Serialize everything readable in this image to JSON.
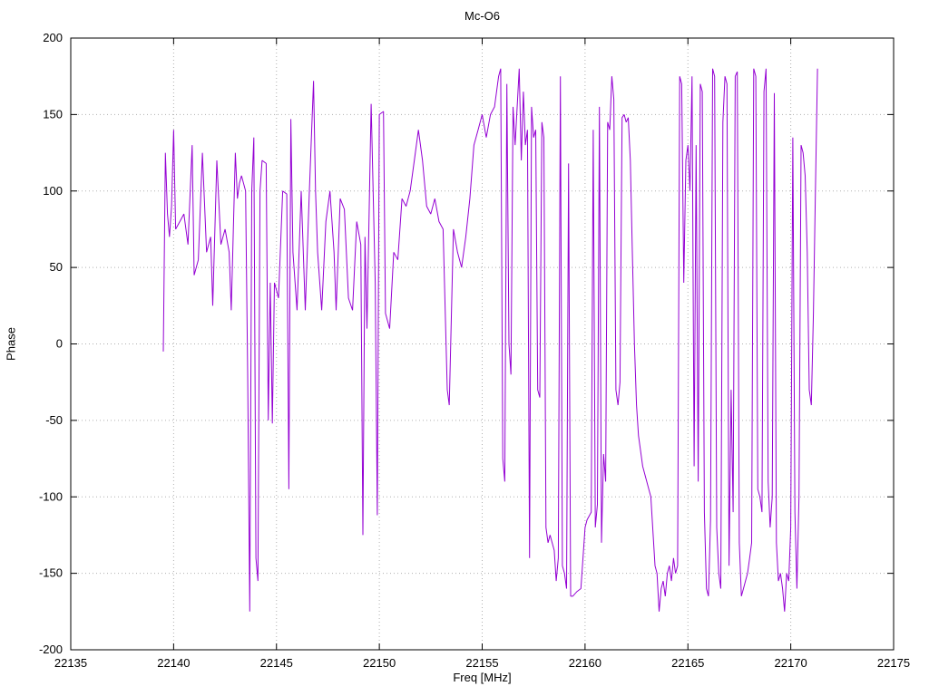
{
  "page": {
    "background": "#ffffff"
  },
  "chart_data": {
    "type": "line",
    "title": "Mc-O6",
    "xlabel": "Freq [MHz]",
    "ylabel": "Phase",
    "xlim": [
      22135,
      22175
    ],
    "ylim": [
      -200,
      200
    ],
    "x_ticks": [
      22135,
      22140,
      22145,
      22150,
      22155,
      22160,
      22165,
      22170,
      22175
    ],
    "y_ticks": [
      -200,
      -150,
      -100,
      -50,
      0,
      50,
      100,
      150,
      200
    ],
    "grid": true,
    "grid_style": "dotted",
    "legend": "none",
    "line_color": "#9400d3",
    "border_color": "#000000",
    "grid_color": "#b0b0b0",
    "series": [
      {
        "name": "phase",
        "points": [
          [
            22139.5,
            -5
          ],
          [
            22139.6,
            125
          ],
          [
            22139.7,
            85
          ],
          [
            22139.8,
            70
          ],
          [
            22139.9,
            90
          ],
          [
            22140.0,
            140
          ],
          [
            22140.1,
            75
          ],
          [
            22140.3,
            80
          ],
          [
            22140.5,
            85
          ],
          [
            22140.7,
            65
          ],
          [
            22140.9,
            130
          ],
          [
            22141.0,
            45
          ],
          [
            22141.2,
            55
          ],
          [
            22141.4,
            125
          ],
          [
            22141.6,
            60
          ],
          [
            22141.8,
            70
          ],
          [
            22141.9,
            25
          ],
          [
            22142.1,
            120
          ],
          [
            22142.3,
            65
          ],
          [
            22142.5,
            75
          ],
          [
            22142.7,
            60
          ],
          [
            22142.8,
            22
          ],
          [
            22143.0,
            125
          ],
          [
            22143.1,
            95
          ],
          [
            22143.2,
            105
          ],
          [
            22143.3,
            110
          ],
          [
            22143.5,
            100
          ],
          [
            22143.6,
            -20
          ],
          [
            22143.7,
            -175
          ],
          [
            22143.8,
            100
          ],
          [
            22143.9,
            135
          ],
          [
            22144.0,
            -140
          ],
          [
            22144.1,
            -155
          ],
          [
            22144.2,
            100
          ],
          [
            22144.3,
            120
          ],
          [
            22144.5,
            118
          ],
          [
            22144.6,
            -50
          ],
          [
            22144.7,
            40
          ],
          [
            22144.8,
            -52
          ],
          [
            22144.9,
            40
          ],
          [
            22145.0,
            35
          ],
          [
            22145.1,
            30
          ],
          [
            22145.3,
            100
          ],
          [
            22145.5,
            98
          ],
          [
            22145.6,
            -95
          ],
          [
            22145.7,
            147
          ],
          [
            22145.8,
            60
          ],
          [
            22146.0,
            22
          ],
          [
            22146.2,
            100
          ],
          [
            22146.4,
            22
          ],
          [
            22146.6,
            100
          ],
          [
            22146.8,
            172
          ],
          [
            22146.9,
            100
          ],
          [
            22147.0,
            60
          ],
          [
            22147.2,
            22
          ],
          [
            22147.4,
            80
          ],
          [
            22147.6,
            100
          ],
          [
            22147.8,
            60
          ],
          [
            22147.9,
            22
          ],
          [
            22148.1,
            95
          ],
          [
            22148.3,
            88
          ],
          [
            22148.5,
            30
          ],
          [
            22148.7,
            22
          ],
          [
            22148.9,
            80
          ],
          [
            22149.1,
            65
          ],
          [
            22149.2,
            -125
          ],
          [
            22149.3,
            70
          ],
          [
            22149.4,
            10
          ],
          [
            22149.6,
            157
          ],
          [
            22149.8,
            40
          ],
          [
            22149.9,
            -112
          ],
          [
            22150.0,
            150
          ],
          [
            22150.2,
            152
          ],
          [
            22150.3,
            20
          ],
          [
            22150.5,
            10
          ],
          [
            22150.7,
            60
          ],
          [
            22150.9,
            55
          ],
          [
            22151.1,
            95
          ],
          [
            22151.3,
            90
          ],
          [
            22151.5,
            100
          ],
          [
            22151.7,
            120
          ],
          [
            22151.9,
            140
          ],
          [
            22152.1,
            120
          ],
          [
            22152.3,
            90
          ],
          [
            22152.5,
            85
          ],
          [
            22152.7,
            95
          ],
          [
            22152.9,
            80
          ],
          [
            22153.1,
            75
          ],
          [
            22153.3,
            -30
          ],
          [
            22153.4,
            -40
          ],
          [
            22153.6,
            75
          ],
          [
            22153.8,
            60
          ],
          [
            22154.0,
            50
          ],
          [
            22154.2,
            70
          ],
          [
            22154.4,
            95
          ],
          [
            22154.6,
            130
          ],
          [
            22154.8,
            140
          ],
          [
            22155.0,
            150
          ],
          [
            22155.2,
            135
          ],
          [
            22155.4,
            150
          ],
          [
            22155.6,
            155
          ],
          [
            22155.8,
            175
          ],
          [
            22155.9,
            180
          ],
          [
            22156.0,
            -75
          ],
          [
            22156.1,
            -90
          ],
          [
            22156.2,
            170
          ],
          [
            22156.3,
            0
          ],
          [
            22156.4,
            -20
          ],
          [
            22156.5,
            155
          ],
          [
            22156.6,
            130
          ],
          [
            22156.8,
            180
          ],
          [
            22156.9,
            120
          ],
          [
            22157.0,
            165
          ],
          [
            22157.1,
            130
          ],
          [
            22157.2,
            140
          ],
          [
            22157.3,
            -140
          ],
          [
            22157.4,
            155
          ],
          [
            22157.5,
            135
          ],
          [
            22157.6,
            140
          ],
          [
            22157.7,
            -30
          ],
          [
            22157.8,
            -35
          ],
          [
            22157.9,
            145
          ],
          [
            22158.0,
            135
          ],
          [
            22158.1,
            -120
          ],
          [
            22158.2,
            -130
          ],
          [
            22158.3,
            -125
          ],
          [
            22158.4,
            -130
          ],
          [
            22158.5,
            -135
          ],
          [
            22158.6,
            -155
          ],
          [
            22158.7,
            -140
          ],
          [
            22158.8,
            175
          ],
          [
            22158.9,
            -145
          ],
          [
            22159.0,
            -150
          ],
          [
            22159.1,
            -160
          ],
          [
            22159.2,
            118
          ],
          [
            22159.3,
            -165
          ],
          [
            22159.4,
            -165
          ],
          [
            22159.6,
            -162
          ],
          [
            22159.8,
            -160
          ],
          [
            22160.0,
            -120
          ],
          [
            22160.1,
            -115
          ],
          [
            22160.3,
            -110
          ],
          [
            22160.4,
            140
          ],
          [
            22160.5,
            -120
          ],
          [
            22160.6,
            -105
          ],
          [
            22160.7,
            155
          ],
          [
            22160.8,
            -130
          ],
          [
            22160.9,
            -72
          ],
          [
            22161.0,
            -90
          ],
          [
            22161.1,
            145
          ],
          [
            22161.2,
            140
          ],
          [
            22161.3,
            175
          ],
          [
            22161.4,
            160
          ],
          [
            22161.5,
            -30
          ],
          [
            22161.6,
            -40
          ],
          [
            22161.7,
            -25
          ],
          [
            22161.8,
            148
          ],
          [
            22161.9,
            150
          ],
          [
            22162.0,
            145
          ],
          [
            22162.1,
            148
          ],
          [
            22162.2,
            120
          ],
          [
            22162.3,
            60
          ],
          [
            22162.4,
            0
          ],
          [
            22162.5,
            -40
          ],
          [
            22162.6,
            -60
          ],
          [
            22162.7,
            -70
          ],
          [
            22162.8,
            -80
          ],
          [
            22163.0,
            -90
          ],
          [
            22163.2,
            -100
          ],
          [
            22163.4,
            -145
          ],
          [
            22163.5,
            -150
          ],
          [
            22163.6,
            -175
          ],
          [
            22163.7,
            -160
          ],
          [
            22163.8,
            -155
          ],
          [
            22163.9,
            -165
          ],
          [
            22164.0,
            -150
          ],
          [
            22164.1,
            -145
          ],
          [
            22164.2,
            -155
          ],
          [
            22164.3,
            -140
          ],
          [
            22164.4,
            -150
          ],
          [
            22164.5,
            -145
          ],
          [
            22164.6,
            175
          ],
          [
            22164.7,
            170
          ],
          [
            22164.8,
            40
          ],
          [
            22164.9,
            120
          ],
          [
            22165.0,
            130
          ],
          [
            22165.1,
            100
          ],
          [
            22165.2,
            175
          ],
          [
            22165.3,
            -80
          ],
          [
            22165.4,
            130
          ],
          [
            22165.5,
            -90
          ],
          [
            22165.6,
            170
          ],
          [
            22165.7,
            165
          ],
          [
            22165.8,
            -110
          ],
          [
            22165.9,
            -160
          ],
          [
            22166.0,
            -165
          ],
          [
            22166.1,
            -115
          ],
          [
            22166.2,
            180
          ],
          [
            22166.3,
            175
          ],
          [
            22166.4,
            -120
          ],
          [
            22166.5,
            -150
          ],
          [
            22166.6,
            -160
          ],
          [
            22166.7,
            145
          ],
          [
            22166.8,
            175
          ],
          [
            22166.9,
            170
          ],
          [
            22167.0,
            -145
          ],
          [
            22167.1,
            -30
          ],
          [
            22167.2,
            -110
          ],
          [
            22167.3,
            175
          ],
          [
            22167.4,
            178
          ],
          [
            22167.5,
            -130
          ],
          [
            22167.6,
            -165
          ],
          [
            22167.7,
            -160
          ],
          [
            22167.8,
            -155
          ],
          [
            22167.9,
            -150
          ],
          [
            22168.0,
            -140
          ],
          [
            22168.1,
            -130
          ],
          [
            22168.2,
            180
          ],
          [
            22168.3,
            175
          ],
          [
            22168.4,
            -95
          ],
          [
            22168.5,
            -100
          ],
          [
            22168.6,
            -110
          ],
          [
            22168.7,
            165
          ],
          [
            22168.8,
            180
          ],
          [
            22168.9,
            -90
          ],
          [
            22169.0,
            -120
          ],
          [
            22169.1,
            -100
          ],
          [
            22169.2,
            164
          ],
          [
            22169.3,
            -130
          ],
          [
            22169.4,
            -155
          ],
          [
            22169.5,
            -150
          ],
          [
            22169.6,
            -160
          ],
          [
            22169.7,
            -175
          ],
          [
            22169.8,
            -150
          ],
          [
            22169.9,
            -155
          ],
          [
            22170.0,
            -120
          ],
          [
            22170.1,
            135
          ],
          [
            22170.2,
            -110
          ],
          [
            22170.3,
            -160
          ],
          [
            22170.4,
            -100
          ],
          [
            22170.5,
            130
          ],
          [
            22170.6,
            125
          ],
          [
            22170.7,
            110
          ],
          [
            22170.8,
            60
          ],
          [
            22170.9,
            -30
          ],
          [
            22171.0,
            -40
          ],
          [
            22171.1,
            20
          ],
          [
            22171.2,
            100
          ],
          [
            22171.3,
            180
          ]
        ]
      }
    ]
  }
}
